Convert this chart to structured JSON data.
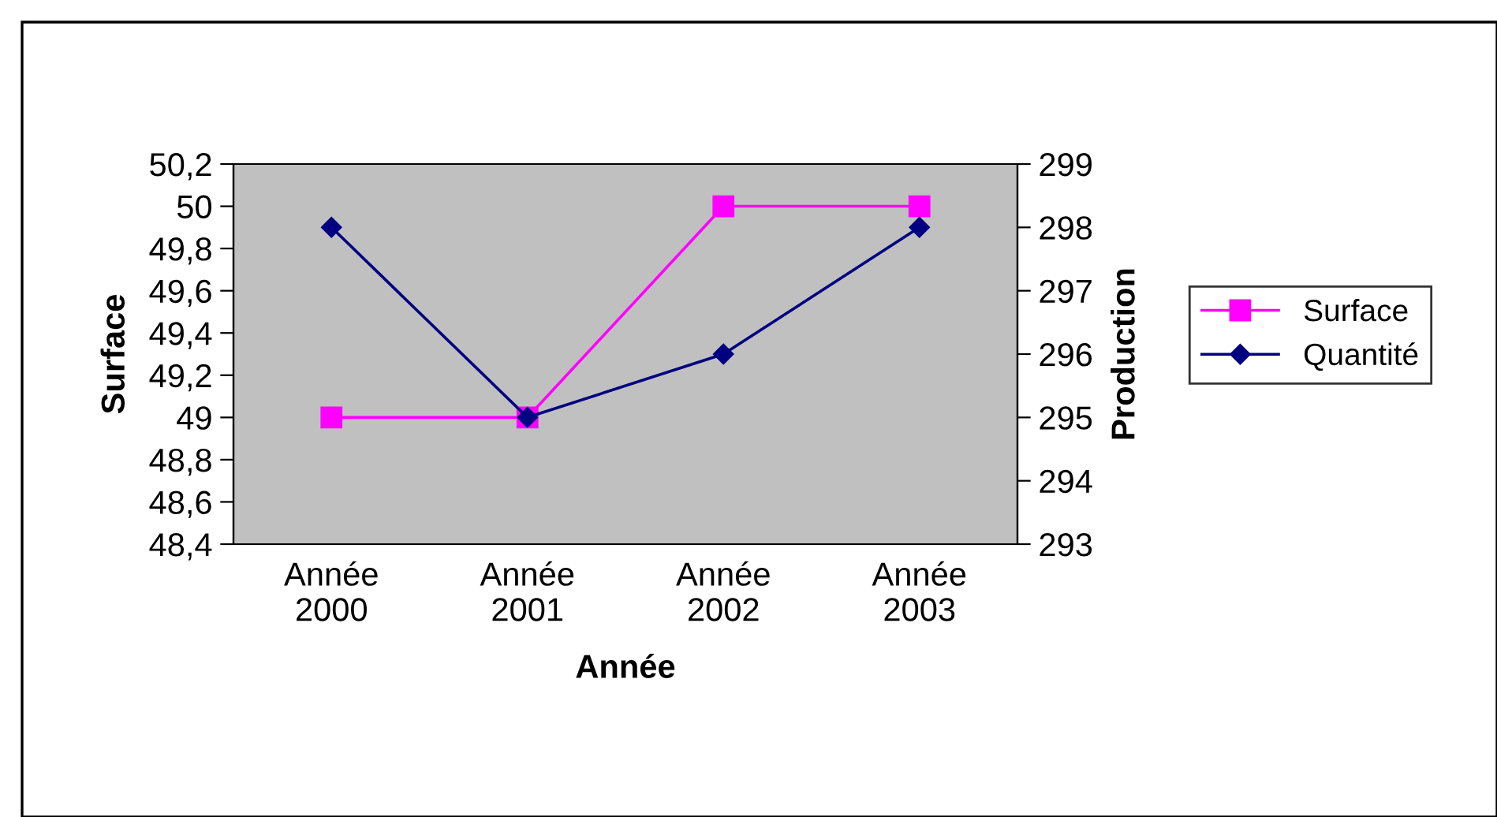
{
  "chart_data": {
    "type": "line",
    "xlabel": "Année",
    "ylabel": "Surface",
    "y2label": "Production",
    "categories": [
      "Année\n2000",
      "Année\n2001",
      "Année\n2002",
      "Année\n2003"
    ],
    "series": [
      {
        "name": "Surface",
        "color": "#ff00ff",
        "values": [
          49,
          49,
          50,
          50
        ],
        "marker": "square"
      },
      {
        "name": "Quantité",
        "color": "#000080",
        "values": [
          298,
          295,
          296,
          298
        ],
        "marker": "diamond",
        "axis": "y2"
      }
    ],
    "ylim": [
      48.4,
      50.2
    ],
    "yticks": [
      {
        "value": 48.4,
        "label": "48,4"
      },
      {
        "value": 48.6,
        "label": "48,6"
      },
      {
        "value": 48.8,
        "label": "48,8"
      },
      49,
      {
        "value": 49.2,
        "label": "49,2"
      },
      {
        "value": 49.4,
        "label": "49,4"
      },
      {
        "value": 49.6,
        "label": "49,6"
      },
      {
        "value": 49.8,
        "label": "49,8"
      },
      50,
      {
        "value": 50.2,
        "label": "50,2"
      }
    ],
    "y2lim": [
      293,
      299
    ],
    "y2ticks": [
      293,
      294,
      295,
      296,
      297,
      298,
      299
    ],
    "grid": false,
    "legend": "right"
  }
}
